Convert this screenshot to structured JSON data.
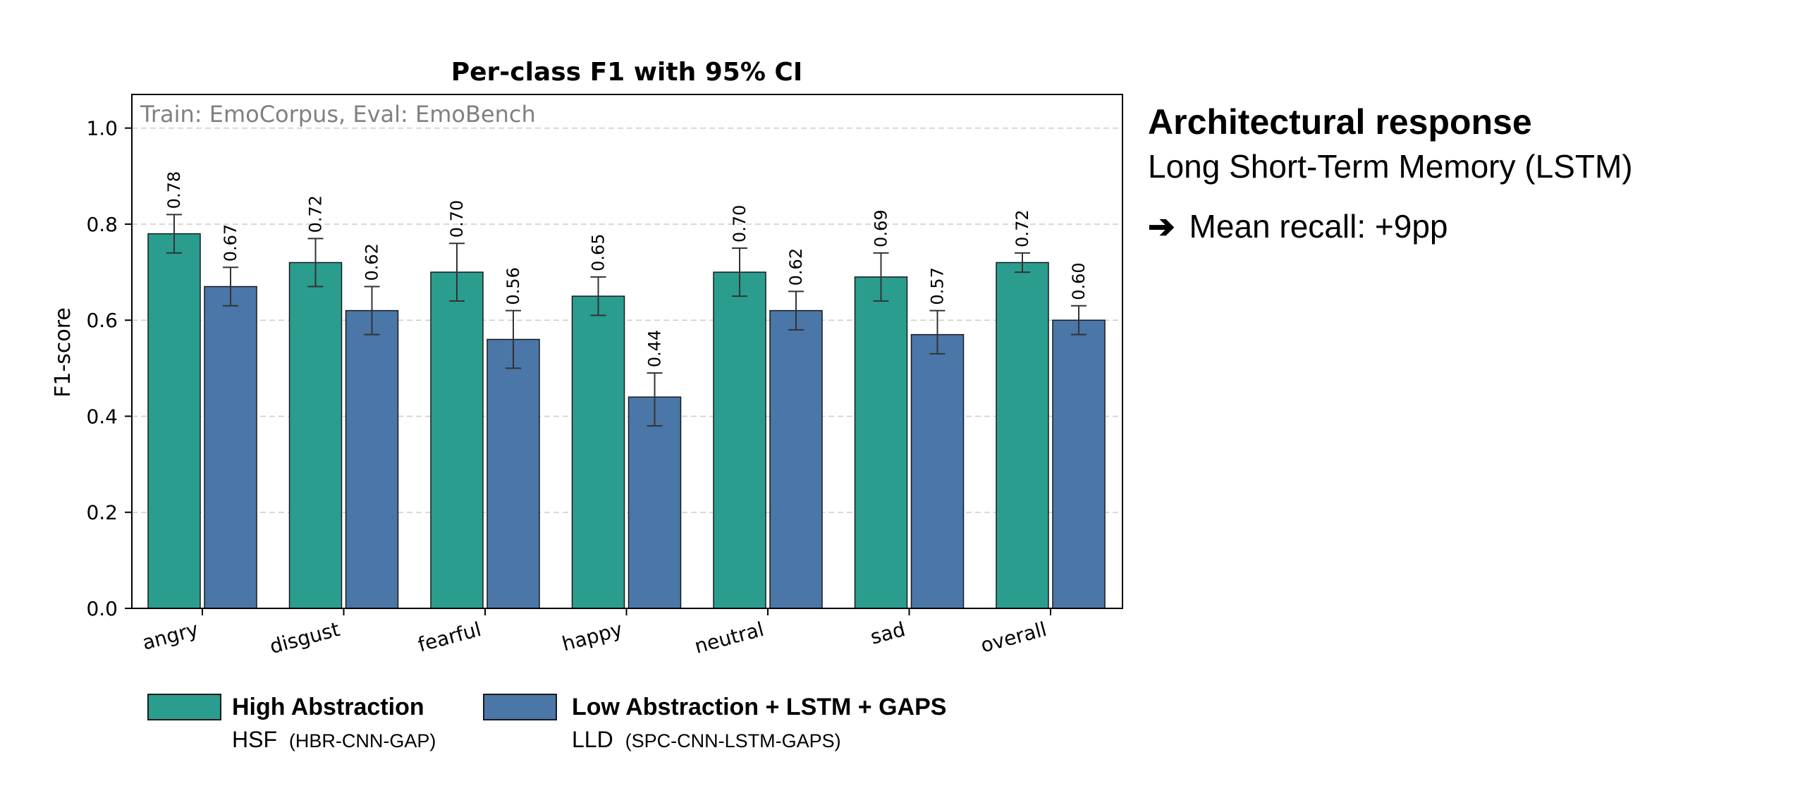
{
  "chart_data": {
    "type": "bar",
    "title": "Per-class F1 with 95% CI",
    "ylabel": "F1-score",
    "xlabel": "",
    "ylim": [
      0,
      1.07
    ],
    "yticks": [
      "0.0",
      "0.2",
      "0.4",
      "0.6",
      "0.8",
      "1.0"
    ],
    "ytick_values": [
      0,
      0.2,
      0.4,
      0.6,
      0.8,
      1.0
    ],
    "grid": true,
    "annotation": "Train: EmoCorpus, Eval: EmoBench",
    "categories": [
      "angry",
      "disgust",
      "fearful",
      "happy",
      "neutral",
      "sad",
      "overall"
    ],
    "series": [
      {
        "name": "High Abstraction",
        "color": "#2a9d8f",
        "values": [
          0.78,
          0.72,
          0.7,
          0.65,
          0.7,
          0.69,
          0.72
        ],
        "labels": [
          "0.78",
          "0.72",
          "0.70",
          "0.65",
          "0.70",
          "0.69",
          "0.72"
        ],
        "ci_low": [
          0.74,
          0.67,
          0.64,
          0.61,
          0.65,
          0.64,
          0.7
        ],
        "ci_high": [
          0.82,
          0.77,
          0.76,
          0.69,
          0.75,
          0.74,
          0.74
        ]
      },
      {
        "name": "Low Abstraction + LSTM + GAPS",
        "color": "#4a76a8",
        "values": [
          0.67,
          0.62,
          0.56,
          0.44,
          0.62,
          0.57,
          0.6
        ],
        "labels": [
          "0.67",
          "0.62",
          "0.56",
          "0.44",
          "0.62",
          "0.57",
          "0.60"
        ],
        "ci_low": [
          0.63,
          0.57,
          0.5,
          0.38,
          0.58,
          0.53,
          0.57
        ],
        "ci_high": [
          0.71,
          0.67,
          0.62,
          0.49,
          0.66,
          0.62,
          0.63
        ]
      }
    ],
    "legend": [
      {
        "title": "High Abstraction",
        "sub_main": "HSF",
        "sub_detail": "(HBR-CNN-GAP)"
      },
      {
        "title": "Low Abstraction + LSTM + GAPS",
        "sub_main": "LLD",
        "sub_detail": "(SPC-CNN-LSTM-GAPS)"
      }
    ]
  },
  "side_panel": {
    "heading": "Architectural response",
    "subheading": "Long Short-Term Memory (LSTM)",
    "arrow_icon": "right-arrow-icon",
    "metric": "Mean recall: +9pp"
  }
}
